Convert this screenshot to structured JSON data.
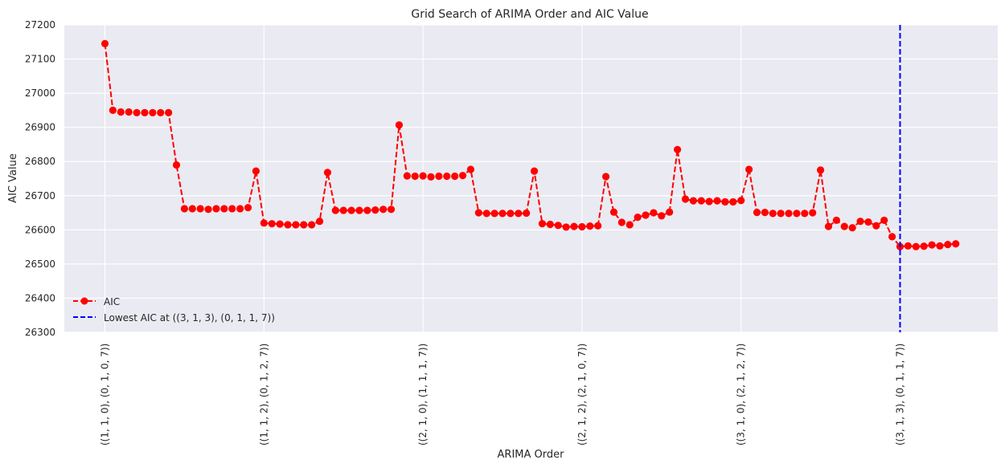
{
  "chart_data": {
    "type": "line",
    "title": "Grid Search of ARIMA Order and AIC Value",
    "xlabel": "ARIMA Order",
    "ylabel": "AIC Value",
    "ylim": [
      26300,
      27200
    ],
    "yticks": [
      26300,
      26400,
      26500,
      26600,
      26700,
      26800,
      26900,
      27000,
      27100,
      27200
    ],
    "xtick_indices": [
      0,
      20,
      40,
      60,
      80,
      100
    ],
    "xtick_labels": [
      "((1, 1, 0), (0, 1, 0, 7))",
      "((1, 1, 2), (0, 1, 2, 7))",
      "((2, 1, 0), (1, 1, 1, 7))",
      "((2, 1, 2), (2, 1, 0, 7))",
      "((3, 1, 0), (2, 1, 2, 7))",
      "((3, 1, 3), (0, 1, 1, 7))"
    ],
    "grid": true,
    "legend_position": "lower-left",
    "series": [
      {
        "name": "AIC",
        "color": "#ff0000",
        "line_style": "dashed",
        "marker": "circle",
        "values": [
          27145,
          26950,
          26945,
          26945,
          26943,
          26943,
          26943,
          26943,
          26943,
          26790,
          26662,
          26662,
          26662,
          26660,
          26662,
          26662,
          26662,
          26662,
          26665,
          26772,
          26620,
          26618,
          26617,
          26615,
          26615,
          26615,
          26615,
          26625,
          26768,
          26657,
          26657,
          26657,
          26657,
          26657,
          26658,
          26660,
          26660,
          26907,
          26758,
          26757,
          26758,
          26755,
          26757,
          26757,
          26757,
          26759,
          26777,
          26650,
          26648,
          26648,
          26648,
          26648,
          26648,
          26649,
          26772,
          26618,
          26616,
          26613,
          26608,
          26610,
          26609,
          26611,
          26612,
          26756,
          26652,
          26622,
          26615,
          26637,
          26643,
          26650,
          26641,
          26652,
          26835,
          26690,
          26685,
          26685,
          26683,
          26685,
          26682,
          26682,
          26686,
          26777,
          26651,
          26651,
          26648,
          26648,
          26648,
          26648,
          26648,
          26650,
          26775,
          26610,
          26628,
          26610,
          26606,
          26625,
          26623,
          26612,
          26628,
          26580,
          26551,
          26553,
          26551,
          26552,
          26556,
          26553,
          26557,
          26559
        ]
      },
      {
        "name": "Lowest AIC at ((3, 1, 3), (0, 1, 1, 7))",
        "color": "#0000ff",
        "line_style": "dashed",
        "type": "vline",
        "x_index": 100
      }
    ]
  }
}
